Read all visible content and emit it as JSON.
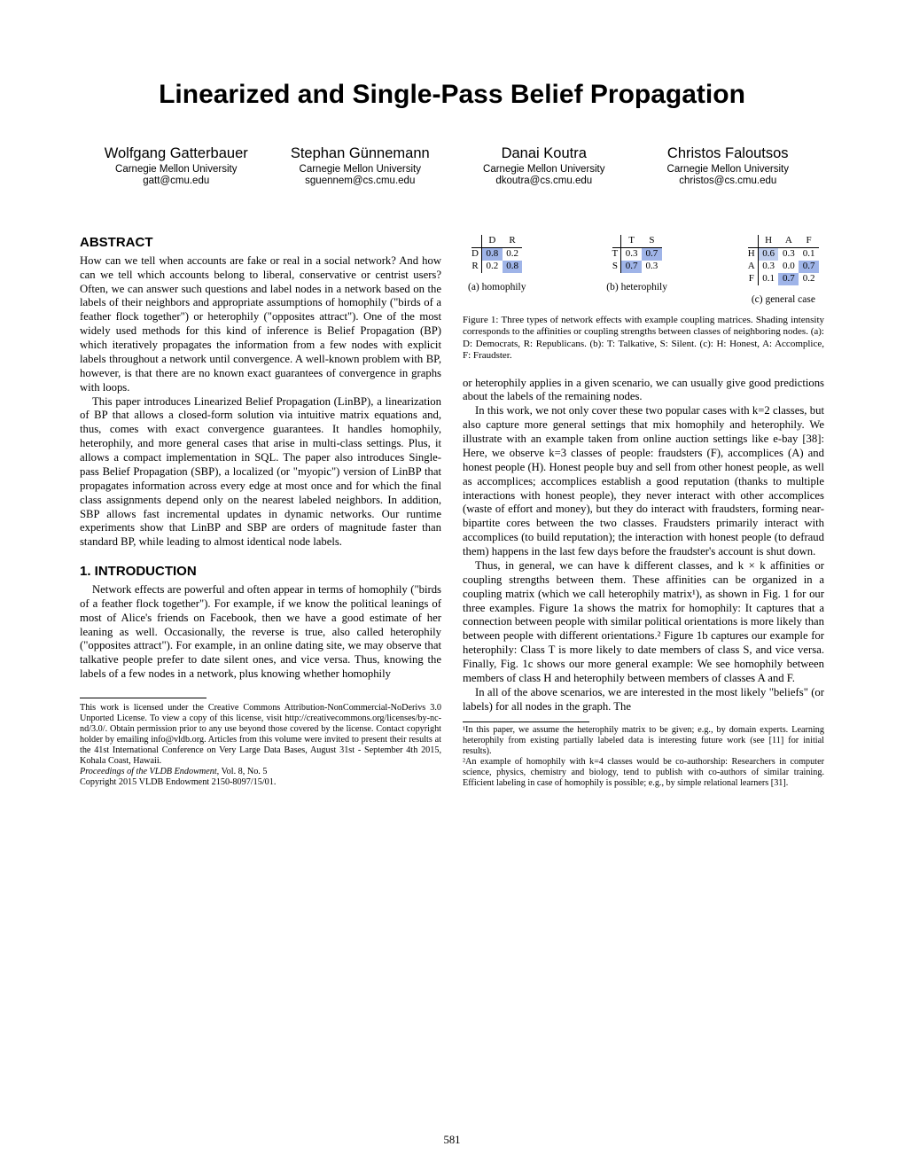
{
  "title": "Linearized and Single-Pass Belief Propagation",
  "authors": [
    {
      "name": "Wolfgang Gatterbauer",
      "aff": "Carnegie Mellon University",
      "email": "gatt@cmu.edu"
    },
    {
      "name": "Stephan Günnemann",
      "aff": "Carnegie Mellon University",
      "email": "sguennem@cs.cmu.edu"
    },
    {
      "name": "Danai Koutra",
      "aff": "Carnegie Mellon University",
      "email": "dkoutra@cs.cmu.edu"
    },
    {
      "name": "Christos Faloutsos",
      "aff": "Carnegie Mellon University",
      "email": "christos@cs.cmu.edu"
    }
  ],
  "abstract_heading": "ABSTRACT",
  "abstract_p1": "How can we tell when accounts are fake or real in a social network? And how can we tell which accounts belong to liberal, conservative or centrist users? Often, we can answer such questions and label nodes in a network based on the labels of their neighbors and appropriate assumptions of homophily (\"birds of a feather flock together\") or heterophily (\"opposites attract\"). One of the most widely used methods for this kind of inference is Belief Propagation (BP) which iteratively propagates the information from a few nodes with explicit labels throughout a network until convergence. A well-known problem with BP, however, is that there are no known exact guarantees of convergence in graphs with loops.",
  "abstract_p2": "This paper introduces Linearized Belief Propagation (LinBP), a linearization of BP that allows a closed-form solution via intuitive matrix equations and, thus, comes with exact convergence guarantees. It handles homophily, heterophily, and more general cases that arise in multi-class settings. Plus, it allows a compact implementation in SQL. The paper also introduces Single-pass Belief Propagation (SBP), a localized (or \"myopic\") version of LinBP that propagates information across every edge at most once and for which the final class assignments depend only on the nearest labeled neighbors. In addition, SBP allows fast incremental updates in dynamic networks. Our runtime experiments show that LinBP and SBP are orders of magnitude faster than standard BP, while leading to almost identical node labels.",
  "intro_heading": "1.   INTRODUCTION",
  "intro_p1": "Network effects are powerful and often appear in terms of homophily (\"birds of a feather flock together\"). For example, if we know the political leanings of most of Alice's friends on Facebook, then we have a good estimate of her leaning as well. Occasionally, the reverse is true, also called heterophily (\"opposites attract\"). For example, in an online dating site, we may observe that talkative people prefer to date silent ones, and vice versa. Thus, knowing the labels of a few nodes in a network, plus knowing whether homophily",
  "license_p1": "This work is licensed under the Creative Commons Attribution-NonCommercial-NoDerivs 3.0 Unported License. To view a copy of this license, visit http://creativecommons.org/licenses/by-nc-nd/3.0/. Obtain permission prior to any use beyond those covered by the license. Contact copyright holder by emailing info@vldb.org. Articles from this volume were invited to present their results at the 41st International Conference on Very Large Data Bases, August 31st - September 4th 2015, Kohala Coast, Hawaii.",
  "license_p2_i": "Proceedings of the VLDB Endowment,",
  "license_p2_r": " Vol. 8, No. 5",
  "license_p3": "Copyright 2015 VLDB Endowment 2150-8097/15/01.",
  "matrices": {
    "a": {
      "cols": [
        "D",
        "R"
      ],
      "rows": [
        "D",
        "R"
      ],
      "cells": [
        [
          "0.8",
          "0.2"
        ],
        [
          "0.2",
          "0.8"
        ]
      ],
      "shade": [
        [
          "#9fb4e8",
          "#ffffff"
        ],
        [
          "#ffffff",
          "#9fb4e8"
        ]
      ],
      "label": "(a) homophily"
    },
    "b": {
      "cols": [
        "T",
        "S"
      ],
      "rows": [
        "T",
        "S"
      ],
      "cells": [
        [
          "0.3",
          "0.7"
        ],
        [
          "0.7",
          "0.3"
        ]
      ],
      "shade": [
        [
          "#ffffff",
          "#9fb4e8"
        ],
        [
          "#9fb4e8",
          "#ffffff"
        ]
      ],
      "label": "(b) heterophily"
    },
    "c": {
      "cols": [
        "H",
        "A",
        "F"
      ],
      "rows": [
        "H",
        "A",
        "F"
      ],
      "cells": [
        [
          "0.6",
          "0.3",
          "0.1"
        ],
        [
          "0.3",
          "0.0",
          "0.7"
        ],
        [
          "0.1",
          "0.7",
          "0.2"
        ]
      ],
      "shade": [
        [
          "#c1cfee",
          "#ffffff",
          "#ffffff"
        ],
        [
          "#ffffff",
          "#ffffff",
          "#9fb4e8"
        ],
        [
          "#ffffff",
          "#9fb4e8",
          "#ffffff"
        ]
      ],
      "label": "(c) general case"
    }
  },
  "fig1_caption": "Figure 1: Three types of network effects with example coupling matrices. Shading intensity corresponds to the affinities or coupling strengths between classes of neighboring nodes. (a): D: Democrats, R: Republicans. (b): T: Talkative, S: Silent. (c): H: Honest, A: Accomplice, F: Fraudster.",
  "right_p1": "or heterophily applies in a given scenario, we can usually give good predictions about the labels of the remaining nodes.",
  "right_p2": "In this work, we not only cover these two popular cases with k=2 classes, but also capture more general settings that mix homophily and heterophily. We illustrate with an example taken from online auction settings like e-bay [38]: Here, we observe k=3 classes of people: fraudsters (F), accomplices (A) and honest people (H). Honest people buy and sell from other honest people, as well as accomplices; accomplices establish a good reputation (thanks to multiple interactions with honest people), they never interact with other accomplices (waste of effort and money), but they do interact with fraudsters, forming near-bipartite cores between the two classes. Fraudsters primarily interact with accomplices (to build reputation); the interaction with honest people (to defraud them) happens in the last few days before the fraudster's account is shut down.",
  "right_p3": "Thus, in general, we can have k different classes, and k × k affinities or coupling strengths between them. These affinities can be organized in a coupling matrix (which we call heterophily matrix¹), as shown in Fig. 1 for our three examples. Figure 1a shows the matrix for homophily: It captures that a connection between people with similar political orientations is more likely than between people with different orientations.² Figure 1b captures our example for heterophily: Class T is more likely to date members of class S, and vice versa. Finally, Fig. 1c shows our more general example: We see homophily between members of class H and heterophily between members of classes A and F.",
  "right_p4": "In all of the above scenarios, we are interested in the most likely \"beliefs\" (or labels) for all nodes in the graph. The",
  "footnote1": "¹In this paper, we assume the heterophily matrix to be given; e.g., by domain experts. Learning heterophily from existing partially labeled data is interesting future work (see [11] for initial results).",
  "footnote2": "²An example of homophily with k=4 classes would be co-authorship: Researchers in computer science, physics, chemistry and biology, tend to publish with co-authors of similar training. Efficient labeling in case of homophily is possible; e.g., by simple relational learners [31].",
  "pageno": "581"
}
